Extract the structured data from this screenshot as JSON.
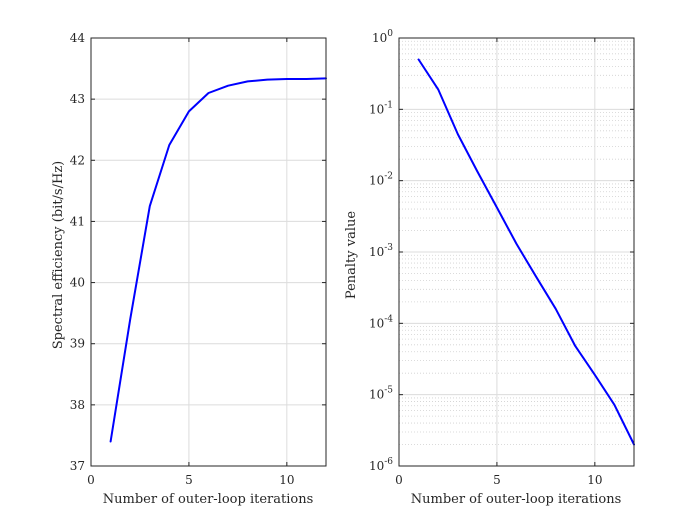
{
  "chart_data": [
    {
      "type": "line",
      "xlabel": "Number of outer-loop iterations",
      "ylabel": "Spectral efficiency (bit/s/Hz)",
      "xlim": [
        0,
        12
      ],
      "ylim": [
        37,
        44
      ],
      "xticks": [
        0,
        5,
        10
      ],
      "yticks": [
        37,
        38,
        39,
        40,
        41,
        42,
        43,
        44
      ],
      "yscale": "linear",
      "grid": true,
      "series": [
        {
          "color": "#0000ff",
          "x": [
            1,
            2,
            3,
            4,
            5,
            6,
            7,
            8,
            9,
            10,
            11,
            12
          ],
          "y": [
            37.4,
            39.4,
            41.25,
            42.25,
            42.8,
            43.1,
            43.22,
            43.29,
            43.32,
            43.33,
            43.33,
            43.34
          ]
        }
      ]
    },
    {
      "type": "line",
      "xlabel": "Number of outer-loop iterations",
      "ylabel": "Penalty value",
      "xlim": [
        0,
        12
      ],
      "ylim": [
        1e-06,
        1
      ],
      "xticks": [
        0,
        5,
        10
      ],
      "yticks": [
        1e-06,
        1e-05,
        0.0001,
        0.001,
        0.01,
        0.1,
        1
      ],
      "ytick_labels": [
        {
          "base": "10",
          "exp": "-6"
        },
        {
          "base": "10",
          "exp": "-5"
        },
        {
          "base": "10",
          "exp": "-4"
        },
        {
          "base": "10",
          "exp": "-3"
        },
        {
          "base": "10",
          "exp": "-2"
        },
        {
          "base": "10",
          "exp": "-1"
        },
        {
          "base": "10",
          "exp": "0"
        }
      ],
      "yscale": "log",
      "grid": true,
      "minor_grid": true,
      "series": [
        {
          "color": "#0000ff",
          "x": [
            1,
            2,
            3,
            4,
            5,
            6,
            7,
            8,
            9,
            10,
            11,
            12
          ],
          "y": [
            0.5,
            0.19,
            0.045,
            0.0135,
            0.0042,
            0.0013,
            0.00045,
            0.00016,
            4.8e-05,
            1.9e-05,
            7.2e-06,
            2e-06
          ]
        }
      ]
    }
  ]
}
